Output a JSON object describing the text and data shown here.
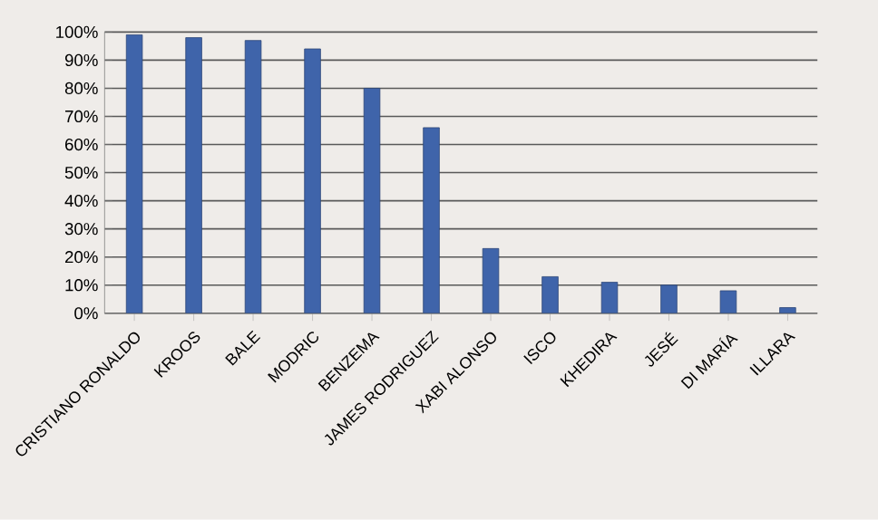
{
  "chart_data": {
    "type": "bar",
    "categories": [
      "CRISTIANO RONALDO",
      "KROOS",
      "BALE",
      "MODRIC",
      "BENZEMA",
      "JAMES RODRIGUEZ",
      "XABI ALONSO",
      "ISCO",
      "KHEDIRA",
      "JESÉ",
      "DI MARÍA",
      "ILLARA"
    ],
    "values": [
      99,
      98,
      97,
      94,
      80,
      66,
      23,
      13,
      11,
      10,
      8,
      2
    ],
    "color": "#3f64aa",
    "ylim": [
      0,
      100
    ],
    "yticks": [
      {
        "value": 0,
        "label": "0%"
      },
      {
        "value": 10,
        "label": "10%"
      },
      {
        "value": 20,
        "label": "20%"
      },
      {
        "value": 30,
        "label": "30%"
      },
      {
        "value": 40,
        "label": "40%"
      },
      {
        "value": 50,
        "label": "50%"
      },
      {
        "value": 60,
        "label": "60%"
      },
      {
        "value": 70,
        "label": "70%"
      },
      {
        "value": 80,
        "label": "80%"
      },
      {
        "value": 90,
        "label": "90%"
      },
      {
        "value": 100,
        "label": "100%"
      }
    ],
    "grid": "y"
  }
}
